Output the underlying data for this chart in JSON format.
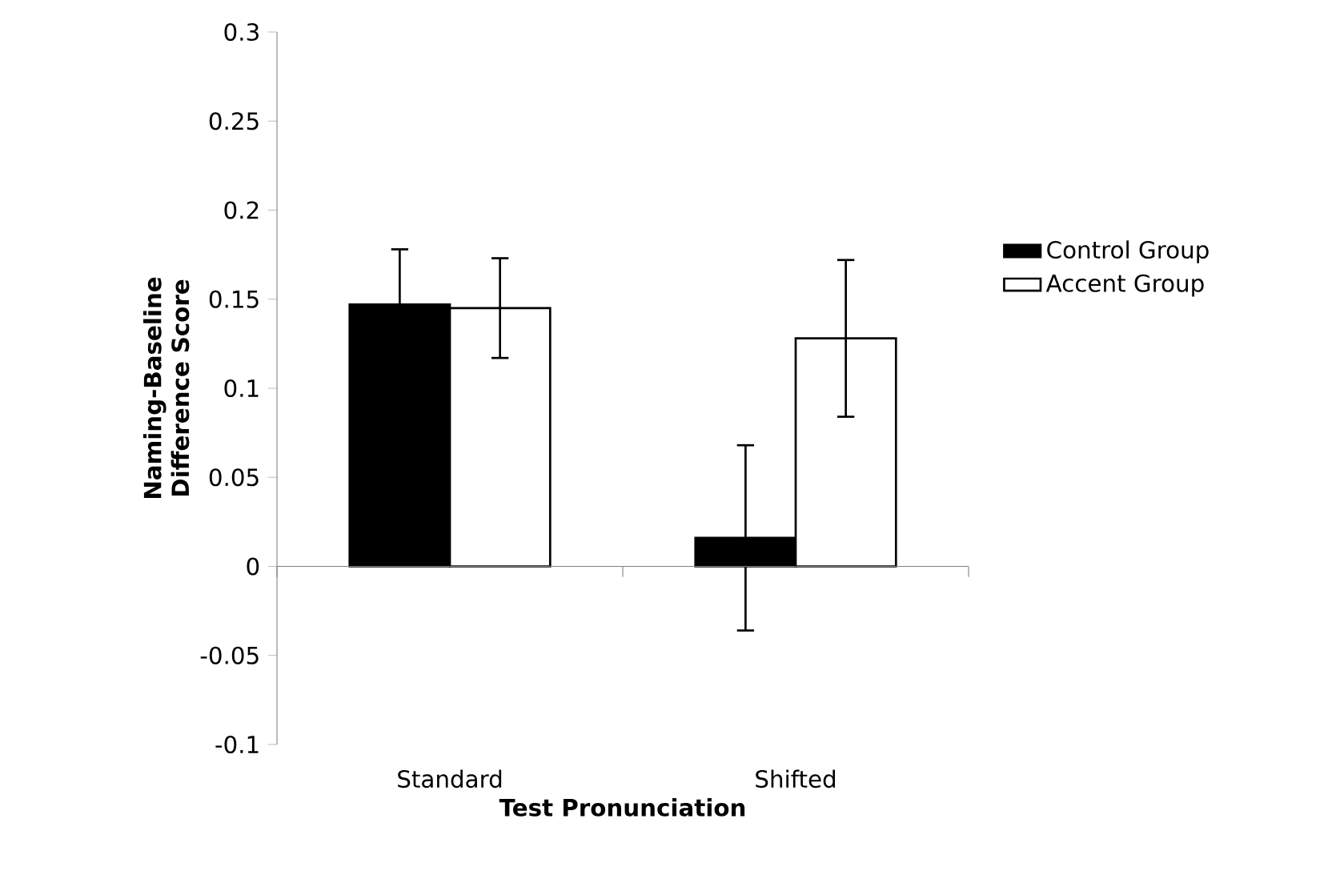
{
  "chart_data": {
    "type": "bar",
    "xlabel": "Test Pronunciation",
    "ylabel": "Naming-Baseline Difference Score",
    "categories": [
      "Standard",
      "Shifted"
    ],
    "series": [
      {
        "name": "Control Group",
        "color": "#000000",
        "values": [
          0.147,
          0.016
        ],
        "errors": [
          0.031,
          0.052
        ]
      },
      {
        "name": "Accent Group",
        "color": "#ffffff",
        "values": [
          0.145,
          0.128
        ],
        "errors": [
          0.028,
          0.044
        ]
      }
    ],
    "ylim": [
      -0.1,
      0.3
    ],
    "yticks": [
      -0.1,
      -0.05,
      0,
      0.05,
      0.1,
      0.15,
      0.2,
      0.25,
      0.3
    ],
    "legend": "right"
  }
}
